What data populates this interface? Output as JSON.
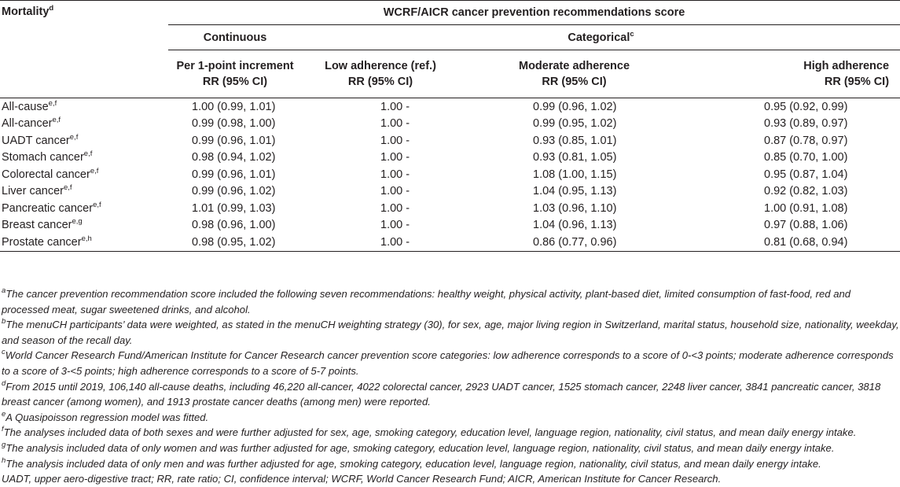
{
  "table": {
    "mortality_header": "Mortality",
    "mortality_header_sup": "d",
    "score_title": "WCRF/AICR cancer prevention recommendations score",
    "continuous_group": "Continuous",
    "categorical_group": "Categorical",
    "categorical_group_sup": "c",
    "columns": [
      {
        "line1": "Per 1-point increment",
        "line2": "RR (95% CI)"
      },
      {
        "line1": "Low adherence (ref.)",
        "line2": "RR (95% CI)"
      },
      {
        "line1": "Moderate adherence",
        "line2": "RR (95% CI)"
      },
      {
        "line1": "High adherence",
        "line2": "RR (95% CI)"
      }
    ],
    "rows": [
      {
        "label": "All-cause",
        "sup": "e,f",
        "cont": "1.00 (0.99, 1.01)",
        "low": "1.00 -",
        "mod": "0.99 (0.96, 1.02)",
        "high": "0.95 (0.92, 0.99)"
      },
      {
        "label": "All-cancer",
        "sup": "e,f",
        "cont": "0.99 (0.98, 1.00)",
        "low": "1.00 -",
        "mod": "0.99 (0.95, 1.02)",
        "high": "0.93 (0.89, 0.97)"
      },
      {
        "label": "UADT cancer",
        "sup": "e,f",
        "cont": "0.99 (0.96, 1.01)",
        "low": "1.00 -",
        "mod": "0.93 (0.85, 1.01)",
        "high": "0.87 (0.78, 0.97)"
      },
      {
        "label": "Stomach cancer",
        "sup": "e,f",
        "cont": "0.98 (0.94, 1.02)",
        "low": "1.00 -",
        "mod": "0.93 (0.81, 1.05)",
        "high": "0.85 (0.70, 1.00)"
      },
      {
        "label": "Colorectal cancer",
        "sup": "e,f",
        "cont": "0.99 (0.96, 1.01)",
        "low": "1.00 -",
        "mod": "1.08 (1.00, 1.15)",
        "high": "0.95 (0.87, 1.04)"
      },
      {
        "label": "Liver cancer",
        "sup": "e,f",
        "cont": "0.99 (0.96, 1.02)",
        "low": "1.00 -",
        "mod": "1.04 (0.95, 1.13)",
        "high": "0.92 (0.82, 1.03)"
      },
      {
        "label": "Pancreatic cancer",
        "sup": "e,f",
        "cont": "1.01 (0.99, 1.03)",
        "low": "1.00 -",
        "mod": "1.03 (0.96, 1.10)",
        "high": "1.00 (0.91, 1.08)"
      },
      {
        "label": "Breast cancer",
        "sup": "e,g",
        "cont": "0.98 (0.96, 1.00)",
        "low": "1.00 -",
        "mod": "1.04 (0.96, 1.13)",
        "high": "0.97 (0.88, 1.06)"
      },
      {
        "label": "Prostate cancer",
        "sup": "e,h",
        "cont": "0.98 (0.95, 1.02)",
        "low": "1.00 -",
        "mod": "0.86 (0.77, 0.96)",
        "high": "0.81 (0.68, 0.94)"
      }
    ]
  },
  "footnotes": [
    {
      "sup": "a",
      "text": "The cancer prevention recommendation score included the following seven recommendations: healthy weight, physical activity, plant-based diet, limited consumption of fast-food, red and processed meat, sugar sweetened drinks, and alcohol."
    },
    {
      "sup": "b",
      "text": "The menuCH participants’ data were weighted, as stated in the menuCH weighting strategy (30), for sex, age, major living region in Switzerland, marital status, household size, nationality, weekday, and season of the recall day."
    },
    {
      "sup": "c",
      "text": "World Cancer Research Fund/American Institute for Cancer Research cancer prevention score categories: low adherence corresponds to a score of 0-<3 points; moderate adherence corresponds to a score of 3-<5 points; high adherence corresponds to a score of 5-7 points."
    },
    {
      "sup": "d",
      "text": "From 2015 until 2019, 106,140 all-cause deaths, including 46,220 all-cancer, 4022 colorectal cancer, 2923 UADT cancer, 1525 stomach cancer, 2248 liver cancer, 3841 pancreatic cancer, 3818 breast cancer (among women), and 1913 prostate cancer deaths (among men) were reported."
    },
    {
      "sup": "e",
      "text": "A Quasipoisson regression model was fitted."
    },
    {
      "sup": "f",
      "text": "The analyses included data of both sexes and were further adjusted for sex, age, smoking category, education level, language region, nationality, civil status, and mean daily energy intake."
    },
    {
      "sup": "g",
      "text": "The analysis included data of only women and was further adjusted for age, smoking category, education level, language region, nationality, civil status, and mean daily energy intake."
    },
    {
      "sup": "h",
      "text": "The analysis included data of only men and was further adjusted for age, smoking category, education level, language region, nationality, civil status, and mean daily energy intake."
    },
    {
      "sup": "",
      "text": "UADT, upper aero-digestive tract; RR, rate ratio; CI, confidence interval; WCRF, World Cancer Research Fund; AICR, American Institute for Cancer Research."
    }
  ]
}
